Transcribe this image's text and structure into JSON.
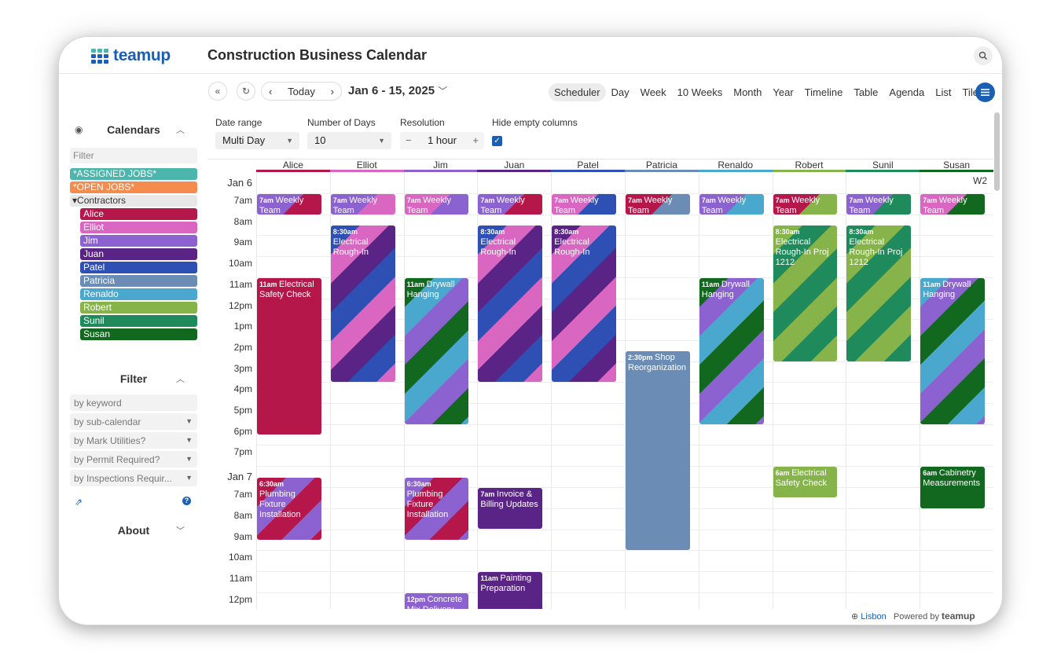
{
  "app": {
    "logo_text": "teamup",
    "calendar_title": "Construction Business Calendar"
  },
  "sidebar": {
    "calendars_title": "Calendars",
    "filter_placeholder": "Filter",
    "top_calendars": [
      {
        "name": "*ASSIGNED JOBS*",
        "color": "#4db6ac"
      },
      {
        "name": "*OPEN JOBS*",
        "color": "#f58b4c"
      }
    ],
    "group_label": "Contractors",
    "contractors": [
      {
        "name": "Alice",
        "color": "#b5174b"
      },
      {
        "name": "Elliot",
        "color": "#d966c1"
      },
      {
        "name": "Jim",
        "color": "#8b62d0"
      },
      {
        "name": "Juan",
        "color": "#5a2486"
      },
      {
        "name": "Patel",
        "color": "#2e4fb4"
      },
      {
        "name": "Patricia",
        "color": "#6b8db5"
      },
      {
        "name": "Renaldo",
        "color": "#4aa8cf"
      },
      {
        "name": "Robert",
        "color": "#86b34a"
      },
      {
        "name": "Sunil",
        "color": "#1f8a5c"
      },
      {
        "name": "Susan",
        "color": "#136820"
      }
    ],
    "filter_title": "Filter",
    "filters": [
      {
        "label": "by keyword",
        "dropdown": false
      },
      {
        "label": "by sub-calendar",
        "dropdown": true
      },
      {
        "label": "by Mark Utilities?",
        "dropdown": true
      },
      {
        "label": "by Permit Required?",
        "dropdown": true
      },
      {
        "label": "by Inspections Requir...",
        "dropdown": true
      }
    ],
    "about_title": "About"
  },
  "toolbar": {
    "today_label": "Today",
    "date_range_label": "Jan 6 - 15, 2025",
    "views": [
      "Scheduler",
      "Day",
      "Week",
      "10 Weeks",
      "Month",
      "Year",
      "Timeline",
      "Table",
      "Agenda",
      "List",
      "Tiles"
    ],
    "active_view": "Scheduler"
  },
  "options": {
    "date_range_label": "Date range",
    "date_range_value": "Multi Day",
    "days_label": "Number of Days",
    "days_value": "10",
    "resolution_label": "Resolution",
    "resolution_value": "1 hour",
    "hide_empty_label": "Hide empty columns",
    "hide_empty_checked": true
  },
  "scheduler": {
    "columns": [
      "Alice",
      "Elliot",
      "Jim",
      "Juan",
      "Patel",
      "Patricia",
      "Renaldo",
      "Robert",
      "Sunil",
      "Susan"
    ],
    "day1_label": "Jan 6",
    "day2_label": "Jan 7",
    "week_label": "W2",
    "day1_hours": [
      "7am",
      "8am",
      "9am",
      "10am",
      "11am",
      "12pm",
      "1pm",
      "2pm",
      "3pm",
      "4pm",
      "5pm",
      "6pm",
      "7pm"
    ],
    "day2_hours": [
      "7am",
      "8am",
      "9am",
      "10am",
      "11am",
      "12pm"
    ],
    "events": [
      {
        "col": 0,
        "start": "7am",
        "title": "Weekly Team",
        "day": 1,
        "colors": [
          "#8b62d0",
          "#b5174b"
        ]
      },
      {
        "col": 1,
        "start": "7am",
        "title": "Weekly Team",
        "day": 1,
        "colors": [
          "#8b62d0",
          "#d966c1"
        ]
      },
      {
        "col": 2,
        "start": "7am",
        "title": "Weekly Team",
        "day": 1,
        "colors": [
          "#d966c1",
          "#8b62d0"
        ]
      },
      {
        "col": 3,
        "start": "7am",
        "title": "Weekly Team",
        "day": 1,
        "colors": [
          "#8b62d0",
          "#b5174b"
        ]
      },
      {
        "col": 4,
        "start": "7am",
        "title": "Weekly Team",
        "day": 1,
        "colors": [
          "#d966c1",
          "#2e4fb4"
        ]
      },
      {
        "col": 5,
        "start": "7am",
        "title": "Weekly Team",
        "day": 1,
        "colors": [
          "#b5174b",
          "#6b8db5"
        ]
      },
      {
        "col": 6,
        "start": "7am",
        "title": "Weekly Team",
        "day": 1,
        "colors": [
          "#8b62d0",
          "#4aa8cf"
        ]
      },
      {
        "col": 7,
        "start": "7am",
        "title": "Weekly Team",
        "day": 1,
        "colors": [
          "#b5174b",
          "#86b34a"
        ]
      },
      {
        "col": 8,
        "start": "7am",
        "title": "Weekly Team",
        "day": 1,
        "colors": [
          "#8b62d0",
          "#1f8a5c"
        ]
      },
      {
        "col": 9,
        "start": "7am",
        "title": "Weekly Team",
        "day": 1,
        "colors": [
          "#d966c1",
          "#136820"
        ]
      },
      {
        "col": 1,
        "start": "8:30am",
        "title": "Electrical Rough-In",
        "day": 1,
        "colors": [
          "#2e4fb4",
          "#d966c1",
          "#5a2486"
        ]
      },
      {
        "col": 3,
        "start": "8:30am",
        "title": "Electrical Rough-In",
        "day": 1,
        "colors": [
          "#2e4fb4",
          "#d966c1",
          "#5a2486"
        ]
      },
      {
        "col": 4,
        "start": "8:30am",
        "title": "Electrical Rough-In",
        "day": 1,
        "colors": [
          "#5a2486",
          "#d966c1",
          "#2e4fb4"
        ]
      },
      {
        "col": 7,
        "start": "8:30am",
        "title": "Electrical Rough-In Proj 1212",
        "day": 1,
        "colors": [
          "#86b34a",
          "#1f8a5c"
        ]
      },
      {
        "col": 8,
        "start": "8:30am",
        "title": "Electrical Rough-In Proj 1212",
        "day": 1,
        "colors": [
          "#1f8a5c",
          "#86b34a"
        ]
      },
      {
        "col": 0,
        "start": "11am",
        "title": "Electrical Safety Check",
        "day": 1,
        "colors": [
          "#b5174b"
        ]
      },
      {
        "col": 2,
        "start": "11am",
        "title": "Drywall Hanging",
        "day": 1,
        "colors": [
          "#136820",
          "#4aa8cf",
          "#8b62d0"
        ]
      },
      {
        "col": 6,
        "start": "11am",
        "title": "Drywall Hanging",
        "day": 1,
        "colors": [
          "#136820",
          "#8b62d0",
          "#4aa8cf"
        ]
      },
      {
        "col": 9,
        "start": "11am",
        "title": "Drywall Hanging",
        "day": 1,
        "colors": [
          "#4aa8cf",
          "#8b62d0",
          "#136820"
        ]
      },
      {
        "col": 5,
        "start": "2:30pm",
        "title": "Shop Reorganization",
        "day": 1,
        "colors": [
          "#6b8db5"
        ]
      },
      {
        "col": 0,
        "start": "6:30am",
        "title": "Plumbing Fixture Installation",
        "day": 2,
        "colors": [
          "#b5174b",
          "#8b62d0"
        ]
      },
      {
        "col": 2,
        "start": "6:30am",
        "title": "Plumbing Fixture Installation",
        "day": 2,
        "colors": [
          "#8b62d0",
          "#b5174b"
        ]
      },
      {
        "col": 3,
        "start": "7am",
        "title": "Invoice & Billing Updates",
        "day": 2,
        "colors": [
          "#5a2486"
        ]
      },
      {
        "col": 7,
        "start": "6am",
        "title": "Electrical Safety Check",
        "day": 2,
        "colors": [
          "#86b34a"
        ]
      },
      {
        "col": 9,
        "start": "6am",
        "title": "Cabinetry Measurements",
        "day": 2,
        "colors": [
          "#136820"
        ]
      },
      {
        "col": 3,
        "start": "11am",
        "title": "Painting Preparation",
        "day": 2,
        "colors": [
          "#5a2486"
        ]
      },
      {
        "col": 2,
        "start": "12pm",
        "title": "Concrete Mix Delivery",
        "day": 2,
        "colors": [
          "#8b62d0"
        ]
      }
    ]
  },
  "footer": {
    "location": "Lisbon",
    "powered_by": "Powered by",
    "brand": "teamup"
  }
}
